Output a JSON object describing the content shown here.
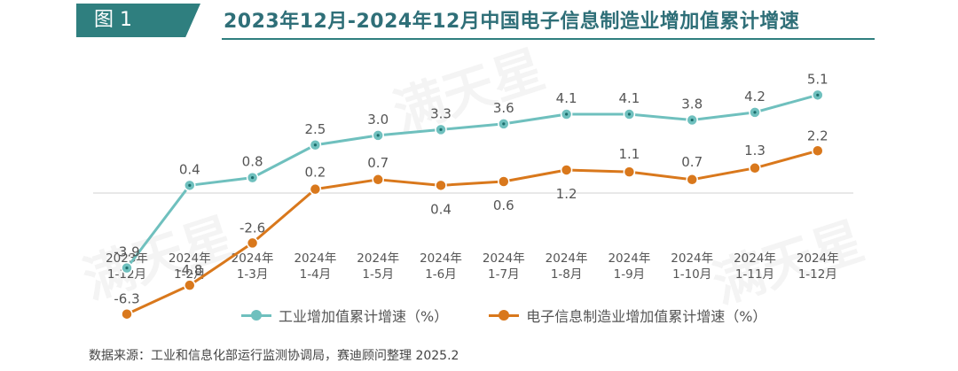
{
  "header": {
    "badge": "图 1",
    "title": "2023年12月-2024年12月中国电子信息制造业增加值累计增速"
  },
  "chart_data": {
    "type": "line",
    "title": "2023年12月-2024年12月中国电子信息制造业增加值累计增速",
    "categories": [
      [
        "2023年",
        "1-12月"
      ],
      [
        "2024年",
        "1-2月"
      ],
      [
        "2024年",
        "1-3月"
      ],
      [
        "2024年",
        "1-4月"
      ],
      [
        "2024年",
        "1-5月"
      ],
      [
        "2024年",
        "1-6月"
      ],
      [
        "2024年",
        "1-7月"
      ],
      [
        "2024年",
        "1-8月"
      ],
      [
        "2024年",
        "1-9月"
      ],
      [
        "2024年",
        "1-10月"
      ],
      [
        "2024年",
        "1-11月"
      ],
      [
        "2024年",
        "1-12月"
      ]
    ],
    "series": [
      {
        "name": "工业增加值累计增速（%）",
        "color": "#6fc0be",
        "values": [
          -3.9,
          0.4,
          0.8,
          2.5,
          3.0,
          3.3,
          3.6,
          4.1,
          4.1,
          3.8,
          4.2,
          5.1
        ]
      },
      {
        "name": "电子信息制造业增加值累计增速（%）",
        "color": "#d9781c",
        "values": [
          -6.3,
          -4.8,
          -2.6,
          0.2,
          0.7,
          0.4,
          0.6,
          1.2,
          1.1,
          0.7,
          1.3,
          2.2
        ]
      }
    ],
    "ylim": [
      -7,
      6
    ],
    "grid": false,
    "legend": "bottom"
  },
  "watermark": "满天星",
  "source": "数据来源：工业和信息化部运行监测协调局，赛迪顾问整理 2025.2"
}
